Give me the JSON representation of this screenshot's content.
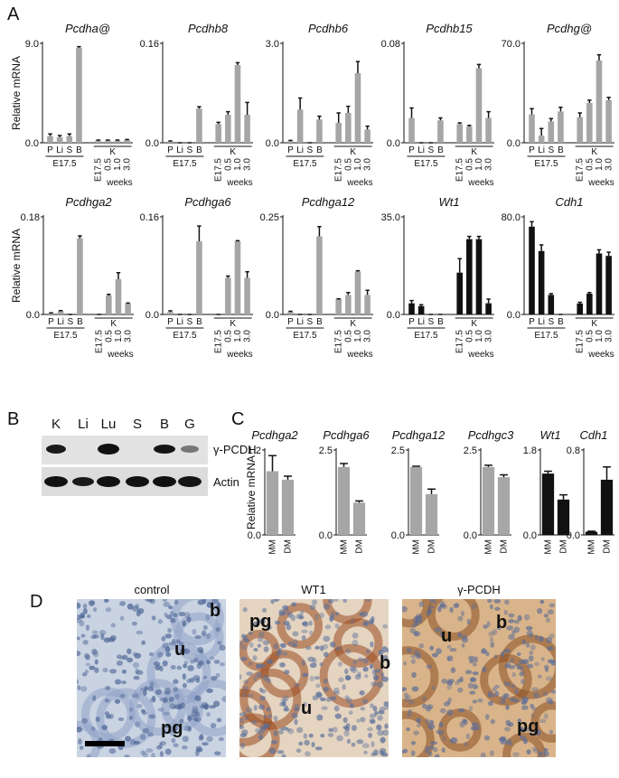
{
  "chart_data": [
    {
      "type": "bar",
      "title": "Pcdha@",
      "y_label": "Relative mRNA",
      "categories": [
        "P",
        "Li",
        "S",
        "B",
        "E17.5",
        "0.5",
        "1.0",
        "3.0"
      ],
      "group_labels": [
        "E17.5",
        "K"
      ],
      "x_unit": "weeks",
      "color": "#a6a6a6",
      "values": [
        0.6,
        0.5,
        0.6,
        8.6,
        0.2,
        0.2,
        0.2,
        0.25
      ],
      "errors": [
        0.2,
        0.15,
        0.2,
        0.1,
        0.05,
        0.05,
        0.05,
        0.05
      ],
      "ylim": [
        0,
        9
      ],
      "yticks": [
        {
          "value": 0,
          "label": "0.0"
        },
        {
          "value": 9,
          "label": "9.0"
        }
      ]
    },
    {
      "type": "bar",
      "title": "Pcdhb8",
      "categories": [
        "P",
        "Li",
        "S",
        "B",
        "E17.5",
        "0.5",
        "1.0",
        "3.0"
      ],
      "group_labels": [
        "E17.5",
        "K"
      ],
      "x_unit": "weeks",
      "color": "#a6a6a6",
      "values": [
        0.002,
        0,
        0,
        0.055,
        0.03,
        0.045,
        0.125,
        0.045
      ],
      "errors": [
        0.001,
        0,
        0,
        0.003,
        0.003,
        0.005,
        0.004,
        0.02
      ],
      "ylim": [
        0,
        0.16
      ],
      "yticks": [
        {
          "value": 0,
          "label": "0.0"
        },
        0.16
      ]
    },
    {
      "type": "bar",
      "title": "Pcdhb6",
      "categories": [
        "P",
        "Li",
        "S",
        "B",
        "E17.5",
        "0.5",
        "1.0",
        "3.0"
      ],
      "group_labels": [
        "E17.5",
        "K"
      ],
      "x_unit": "weeks",
      "color": "#a6a6a6",
      "values": [
        0.05,
        1.0,
        0,
        0.7,
        0.6,
        0.9,
        2.1,
        0.4
      ],
      "errors": [
        0.02,
        0.35,
        0,
        0.1,
        0.3,
        0.2,
        0.35,
        0.1
      ],
      "ylim": [
        0,
        3
      ],
      "yticks": [
        {
          "value": 0,
          "label": "0.0"
        },
        {
          "value": 3,
          "label": "3.0"
        }
      ]
    },
    {
      "type": "bar",
      "title": "Pcdhb15",
      "categories": [
        "P",
        "Li",
        "S",
        "B",
        "E17.5",
        "0.5",
        "1.0",
        "3.0"
      ],
      "group_labels": [
        "E17.5",
        "K"
      ],
      "x_unit": "weeks",
      "color": "#a6a6a6",
      "values": [
        0.02,
        0,
        0,
        0.018,
        0.015,
        0.013,
        0.06,
        0.02
      ],
      "errors": [
        0.008,
        0,
        0,
        0.002,
        0.001,
        0.001,
        0.003,
        0.005
      ],
      "ylim": [
        0,
        0.08
      ],
      "yticks": [
        {
          "value": 0,
          "label": "0.0"
        },
        0.08
      ]
    },
    {
      "type": "bar",
      "title": "Pcdhg@",
      "categories": [
        "P",
        "Li",
        "S",
        "B",
        "E17.5",
        "0.5",
        "1.0",
        "3.0"
      ],
      "group_labels": [
        "E17.5",
        "K"
      ],
      "x_unit": "weeks",
      "color": "#a6a6a6",
      "values": [
        20,
        5,
        15,
        22,
        18,
        28,
        58,
        30
      ],
      "errors": [
        4,
        5,
        2,
        3,
        3,
        2,
        4,
        2
      ],
      "ylim": [
        0,
        70
      ],
      "yticks": [
        {
          "value": 0,
          "label": "0.0"
        },
        {
          "value": 70,
          "label": "70.0"
        }
      ]
    },
    {
      "type": "bar",
      "title": "Pcdhga2",
      "y_label": "Relative mRNA",
      "categories": [
        "P",
        "Li",
        "S",
        "B",
        "E17.5",
        "0.5",
        "1.0",
        "3.0"
      ],
      "group_labels": [
        "E17.5",
        "K"
      ],
      "x_unit": "weeks",
      "color": "#a6a6a6",
      "values": [
        0.002,
        0.006,
        0,
        0.14,
        0,
        0.035,
        0.065,
        0.02
      ],
      "errors": [
        0.001,
        0.001,
        0,
        0.005,
        0,
        0.002,
        0.012,
        0.001
      ],
      "ylim": [
        0,
        0.18
      ],
      "yticks": [
        {
          "value": 0,
          "label": "0.0"
        },
        0.18
      ]
    },
    {
      "type": "bar",
      "title": "Pcdhga6",
      "categories": [
        "P",
        "Li",
        "S",
        "B",
        "E17.5",
        "0.5",
        "1.0",
        "3.0"
      ],
      "group_labels": [
        "E17.5",
        "K"
      ],
      "x_unit": "weeks",
      "color": "#a6a6a6",
      "values": [
        0.004,
        0,
        0,
        0.12,
        0,
        0.06,
        0.12,
        0.06
      ],
      "errors": [
        0.002,
        0,
        0,
        0.025,
        0,
        0.003,
        0.001,
        0.01
      ],
      "ylim": [
        0,
        0.16
      ],
      "yticks": [
        {
          "value": 0,
          "label": "0.0"
        },
        0.16
      ]
    },
    {
      "type": "bar",
      "title": "Pcdhga12",
      "categories": [
        "P",
        "Li",
        "S",
        "B",
        "E17.5",
        "0.5",
        "1.0",
        "3.0"
      ],
      "group_labels": [
        "E17.5",
        "K"
      ],
      "x_unit": "weeks",
      "color": "#a6a6a6",
      "values": [
        0.006,
        0,
        0,
        0.2,
        0.04,
        0.05,
        0.11,
        0.05
      ],
      "errors": [
        0.002,
        0,
        0,
        0.025,
        0,
        0.006,
        0.002,
        0.012
      ],
      "ylim": [
        0,
        0.25
      ],
      "yticks": [
        {
          "value": 0,
          "label": "0.0"
        },
        0.25
      ]
    },
    {
      "type": "bar",
      "title": "Wt1",
      "categories": [
        "P",
        "Li",
        "S",
        "B",
        "E17.5",
        "0.5",
        "1.0",
        "3.0"
      ],
      "group_labels": [
        "E17.5",
        "K"
      ],
      "x_unit": "weeks",
      "color": "#111111",
      "values": [
        4,
        3,
        0,
        0,
        15,
        27,
        27,
        4
      ],
      "errors": [
        1,
        0.5,
        0,
        0,
        5,
        1,
        1,
        1.5
      ],
      "ylim": [
        0,
        35
      ],
      "yticks": [
        {
          "value": 0,
          "label": "0.0"
        },
        {
          "value": 35,
          "label": "35.0"
        }
      ]
    },
    {
      "type": "bar",
      "title": "Cdh1",
      "categories": [
        "P",
        "Li",
        "S",
        "B",
        "E17.5",
        "0.5",
        "1.0",
        "3.0"
      ],
      "group_labels": [
        "E17.5",
        "K"
      ],
      "x_unit": "weeks",
      "color": "#111111",
      "values": [
        72,
        52,
        16,
        0,
        9,
        17,
        50,
        48
      ],
      "errors": [
        4,
        5,
        1,
        0,
        1,
        1,
        3,
        3
      ],
      "ylim": [
        0,
        80
      ],
      "yticks": [
        {
          "value": 0,
          "label": "0.0"
        },
        {
          "value": 80,
          "label": "80.0"
        }
      ]
    },
    {
      "type": "bar",
      "title": "Pcdhga2",
      "y_label": "Relative mRNA",
      "categories": [
        "MM",
        "DM"
      ],
      "color": "#a6a6a6",
      "values": [
        0.9,
        0.78
      ],
      "errors": [
        0.22,
        0.05
      ],
      "ylim": [
        0,
        1.2
      ],
      "yticks": [
        {
          "value": 0,
          "label": "0.0"
        },
        1.2
      ]
    },
    {
      "type": "bar",
      "title": "Pcdhga6",
      "categories": [
        "MM",
        "DM"
      ],
      "color": "#a6a6a6",
      "values": [
        2.0,
        0.95
      ],
      "errors": [
        0.1,
        0.05
      ],
      "ylim": [
        0,
        2.5
      ],
      "yticks": [
        {
          "value": 0,
          "label": "0.0"
        },
        2.5
      ]
    },
    {
      "type": "bar",
      "title": "Pcdhga12",
      "categories": [
        "MM",
        "DM"
      ],
      "color": "#a6a6a6",
      "values": [
        2.0,
        1.2
      ],
      "errors": [
        0.02,
        0.15
      ],
      "ylim": [
        0,
        2.5
      ],
      "yticks": [
        {
          "value": 0,
          "label": "0.0"
        },
        2.5
      ]
    },
    {
      "type": "bar",
      "title": "Pcdhgc3",
      "categories": [
        "MM",
        "DM"
      ],
      "color": "#a6a6a6",
      "values": [
        2.0,
        1.7
      ],
      "errors": [
        0.05,
        0.07
      ],
      "ylim": [
        0,
        2.5
      ],
      "yticks": [
        {
          "value": 0,
          "label": "0.0"
        },
        2.5
      ]
    },
    {
      "type": "bar",
      "title": "Wt1",
      "categories": [
        "MM",
        "DM"
      ],
      "color": "#111111",
      "values": [
        1.3,
        0.75
      ],
      "errors": [
        0.05,
        0.1
      ],
      "ylim": [
        0,
        1.8
      ],
      "yticks": [
        {
          "value": 0,
          "label": "0.0"
        },
        1.8
      ]
    },
    {
      "type": "bar",
      "title": "Cdh1",
      "categories": [
        "MM",
        "DM"
      ],
      "color": "#111111",
      "values": [
        0.03,
        0.52
      ],
      "errors": [
        0.005,
        0.12
      ],
      "ylim": [
        0,
        0.8
      ],
      "yticks": [
        {
          "value": 0,
          "label": "0.0"
        },
        0.8
      ]
    }
  ],
  "panel_labels": [
    "A",
    "B",
    "C",
    "D"
  ],
  "blot": {
    "lanes": [
      "K",
      "Li",
      "Lu",
      "S",
      "B",
      "G"
    ],
    "rows": [
      "γ-PCDH",
      "Actin"
    ]
  },
  "histology": [
    {
      "title": "control",
      "labels": [
        "b",
        "u",
        "pg"
      ]
    },
    {
      "title": "WT1",
      "labels": [
        "pg",
        "b",
        "u"
      ]
    },
    {
      "title": "γ-PCDH",
      "labels": [
        "u",
        "b",
        "pg"
      ]
    }
  ]
}
